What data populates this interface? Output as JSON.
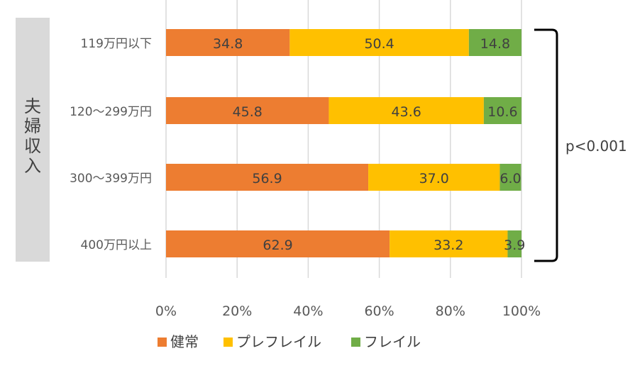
{
  "chart_data": {
    "type": "bar",
    "orientation": "horizontal",
    "stacked": "100%",
    "group_label": "夫婦収入",
    "categories": [
      "119万円以下",
      "120～299万円",
      "300～399万円",
      "400万円以上"
    ],
    "series": [
      {
        "name": "健常",
        "color": "#ED7D31",
        "values": [
          34.8,
          45.8,
          56.9,
          62.9
        ]
      },
      {
        "name": "プレフレイル",
        "color": "#FFC000",
        "values": [
          50.4,
          43.6,
          37.0,
          33.2
        ]
      },
      {
        "name": "フレイル",
        "color": "#70AD47",
        "values": [
          14.8,
          10.6,
          6.0,
          3.9
        ]
      }
    ],
    "x_ticks": [
      "0%",
      "20%",
      "40%",
      "60%",
      "80%",
      "100%"
    ],
    "xlim": [
      0,
      100
    ],
    "grid": "vertical",
    "legend": "bottom",
    "annotation": "p<0.001"
  }
}
